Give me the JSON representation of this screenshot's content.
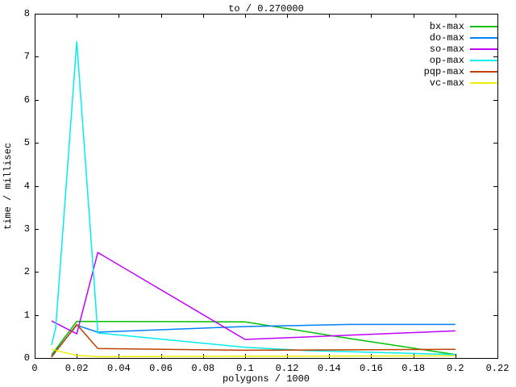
{
  "window": {
    "background": "#ffffff",
    "foreground": "#000000"
  },
  "chart_data": {
    "type": "line",
    "title": "to / 0.270000",
    "xlabel": "polygons / 1000",
    "ylabel": "time / millisec",
    "xlim": [
      0,
      0.22
    ],
    "ylim": [
      0,
      8
    ],
    "grid": false,
    "legend_position": "top-right-inside",
    "x_tick_values": [
      0,
      0.02,
      0.04,
      0.06,
      0.08,
      0.1,
      0.12,
      0.14,
      0.16,
      0.18,
      0.2,
      0.22
    ],
    "x_tick_labels": [
      "0",
      "0.02",
      "0.04",
      "0.06",
      "0.08",
      "0.1",
      "0.12",
      "0.14",
      "0.16",
      "0.18",
      "0.2",
      "0.22"
    ],
    "y_tick_values": [
      0,
      1,
      2,
      3,
      4,
      5,
      6,
      7,
      8
    ],
    "y_tick_labels": [
      "0",
      "1",
      "2",
      "3",
      "4",
      "5",
      "6",
      "7",
      "8"
    ],
    "series": [
      {
        "name": "bx-max",
        "color": "#00c000",
        "points": [
          [
            0.008,
            0.07
          ],
          [
            0.02,
            0.85
          ],
          [
            0.1,
            0.84
          ],
          [
            0.15,
            0.45
          ],
          [
            0.2,
            0.08
          ]
        ]
      },
      {
        "name": "do-max",
        "color": "#0080ff",
        "points": [
          [
            0.008,
            0.04
          ],
          [
            0.02,
            0.76
          ],
          [
            0.03,
            0.6
          ],
          [
            0.1,
            0.73
          ],
          [
            0.15,
            0.78
          ],
          [
            0.2,
            0.78
          ]
        ]
      },
      {
        "name": "so-max",
        "color": "#c000ff",
        "points": [
          [
            0.008,
            0.86
          ],
          [
            0.02,
            0.56
          ],
          [
            0.03,
            2.45
          ],
          [
            0.1,
            0.43
          ],
          [
            0.2,
            0.63
          ]
        ]
      },
      {
        "name": "op-max",
        "color": "#00eeee",
        "points": [
          [
            0.008,
            0.3
          ],
          [
            0.01,
            0.7
          ],
          [
            0.02,
            7.35
          ],
          [
            0.03,
            0.58
          ],
          [
            0.1,
            0.25
          ],
          [
            0.13,
            0.17
          ],
          [
            0.2,
            0.08
          ]
        ]
      },
      {
        "name": "pqp-max",
        "color": "#c04000",
        "points": [
          [
            0.008,
            0.02
          ],
          [
            0.02,
            0.78
          ],
          [
            0.03,
            0.22
          ],
          [
            0.1,
            0.18
          ],
          [
            0.2,
            0.2
          ]
        ]
      },
      {
        "name": "vc-max",
        "color": "#eeee00",
        "points": [
          [
            0.008,
            0.2
          ],
          [
            0.02,
            0.06
          ],
          [
            0.03,
            0.03
          ],
          [
            0.1,
            0.04
          ],
          [
            0.2,
            0.05
          ]
        ]
      }
    ]
  }
}
